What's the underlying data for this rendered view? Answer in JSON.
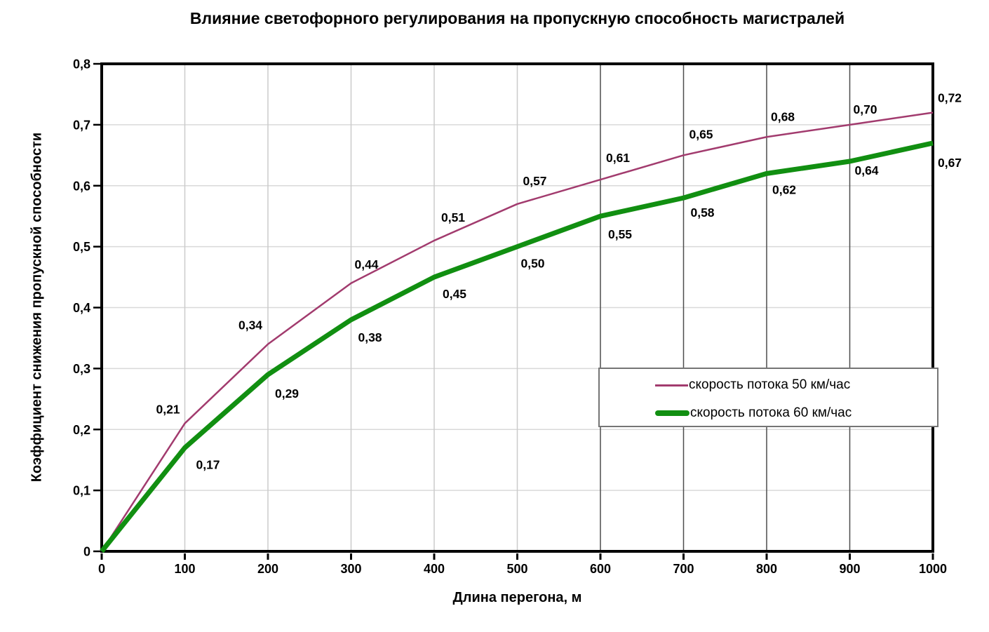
{
  "title": "Влияние светофорного регулирования на пропускную способность магистралей",
  "y_axis": {
    "title": "Коэффициент снижения пропускной способности",
    "tick_labels": [
      "0",
      "0,1",
      "0,2",
      "0,3",
      "0,4",
      "0,5",
      "0,6",
      "0,7",
      "0,8"
    ]
  },
  "x_axis": {
    "title": "Длина перегона, м",
    "tick_labels": [
      "0",
      "100",
      "200",
      "300",
      "400",
      "500",
      "600",
      "700",
      "800",
      "900",
      "1000"
    ]
  },
  "legend": {
    "items": [
      {
        "label": "скорость потока 50 км/час",
        "color": "#A23B6E",
        "sample": "thin-line"
      },
      {
        "label": "скорость потока 60 км/час",
        "color": "#118F11",
        "sample": "thick-line"
      }
    ]
  },
  "colors": {
    "series_50": "#A23B6E",
    "series_60": "#118F11",
    "grid_horizontal": "#D9D9D9",
    "grid_vertical_light": "#CBCBCB",
    "grid_vertical_dark": "#4D4D4D",
    "axis": "#000000",
    "legend_border": "#757575",
    "background": "#FFFFFF"
  },
  "chart_data": {
    "type": "line",
    "title": "Влияние светофорного регулирования на пропускную способность магистралей",
    "xlabel": "Длина перегона, м",
    "ylabel": "Коэффициент снижения пропускной способности",
    "x": [
      0,
      100,
      200,
      300,
      400,
      500,
      600,
      700,
      800,
      900,
      1000
    ],
    "series": [
      {
        "name": "скорость потока 50 км/час",
        "color": "#A23B6E",
        "stroke_width": 2.5,
        "values": [
          0,
          0.21,
          0.34,
          0.44,
          0.51,
          0.57,
          0.61,
          0.65,
          0.68,
          0.7,
          0.72
        ],
        "point_labels": [
          "",
          "0,21",
          "0,34",
          "0,44",
          "0,51",
          "0,57",
          "0,61",
          "0,65",
          "0,68",
          "0,70",
          "0,72"
        ]
      },
      {
        "name": "скорость потока 60 км/час",
        "color": "#118F11",
        "stroke_width": 7,
        "values": [
          0,
          0.17,
          0.29,
          0.38,
          0.45,
          0.5,
          0.55,
          0.58,
          0.62,
          0.64,
          0.67
        ],
        "point_labels": [
          "",
          "0,17",
          "0,29",
          "0,38",
          "0,45",
          "0,50",
          "0,55",
          "0,58",
          "0,62",
          "0,64",
          "0,67"
        ]
      }
    ],
    "xlim": [
      0,
      1000
    ],
    "ylim": [
      0,
      0.8
    ],
    "x_tick_step": 100,
    "y_tick_step": 0.1,
    "grid": true,
    "legend_position": "inside-lower-right",
    "number_format": "decimal-comma"
  }
}
